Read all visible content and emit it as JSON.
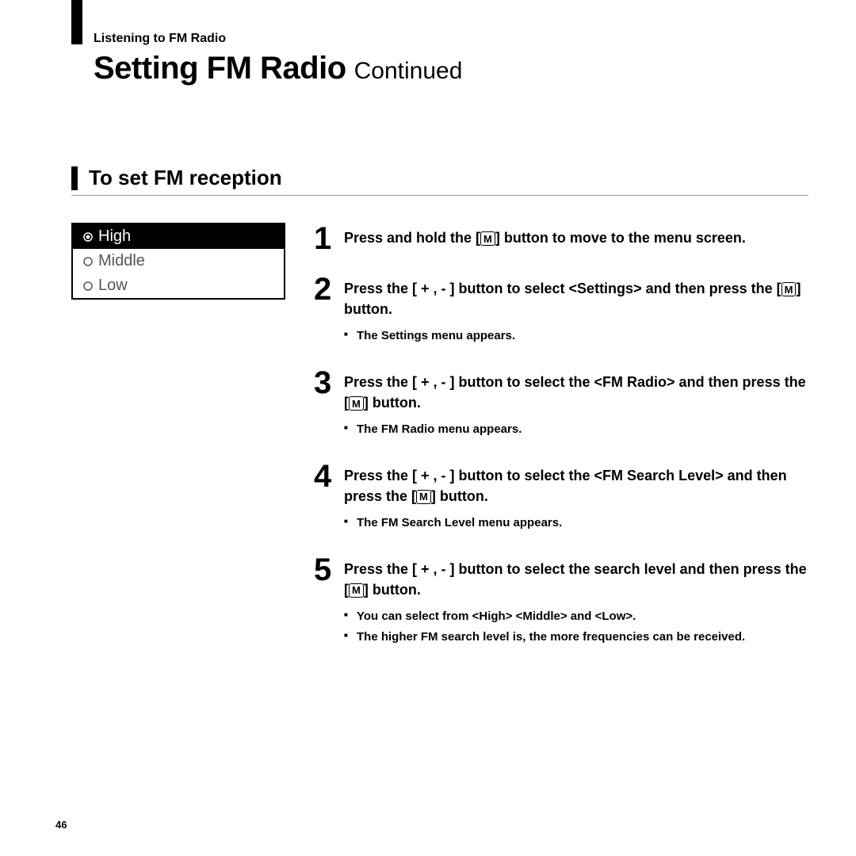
{
  "header": {
    "breadcrumb": "Listening to FM Radio",
    "title": "Setting FM Radio",
    "continued": "Continued"
  },
  "section": {
    "title": "To set FM reception"
  },
  "screenshot": {
    "items": [
      {
        "label": "High",
        "selected": true
      },
      {
        "label": "Middle",
        "selected": false
      },
      {
        "label": "Low",
        "selected": false
      }
    ]
  },
  "steps": [
    {
      "num": "1",
      "main_pre": "Press and hold the ",
      "main_post": " button to move to the menu screen.",
      "subs": []
    },
    {
      "num": "2",
      "main_pre": "Press the [ + , - ] button to select <Settings> and then press the ",
      "main_post": " button.",
      "subs": [
        "The Settings menu appears."
      ]
    },
    {
      "num": "3",
      "main_pre": "Press the [ + , - ] button to select the <FM Radio> and then press the ",
      "main_post": " button.",
      "subs": [
        "The FM Radio menu appears."
      ]
    },
    {
      "num": "4",
      "main_pre": "Press the [ + , - ] button to select the <FM Search Level> and then press the ",
      "main_post": " button.",
      "subs": [
        "The FM Search Level menu appears."
      ]
    },
    {
      "num": "5",
      "main_pre": "Press the [ + , - ] button to select the search level and then press the ",
      "main_post": " button.",
      "subs": [
        "You can select from <High> <Middle> and <Low>.",
        "The higher FM search level is, the more frequencies can be received."
      ]
    }
  ],
  "page_number": "46",
  "m_label": "M"
}
